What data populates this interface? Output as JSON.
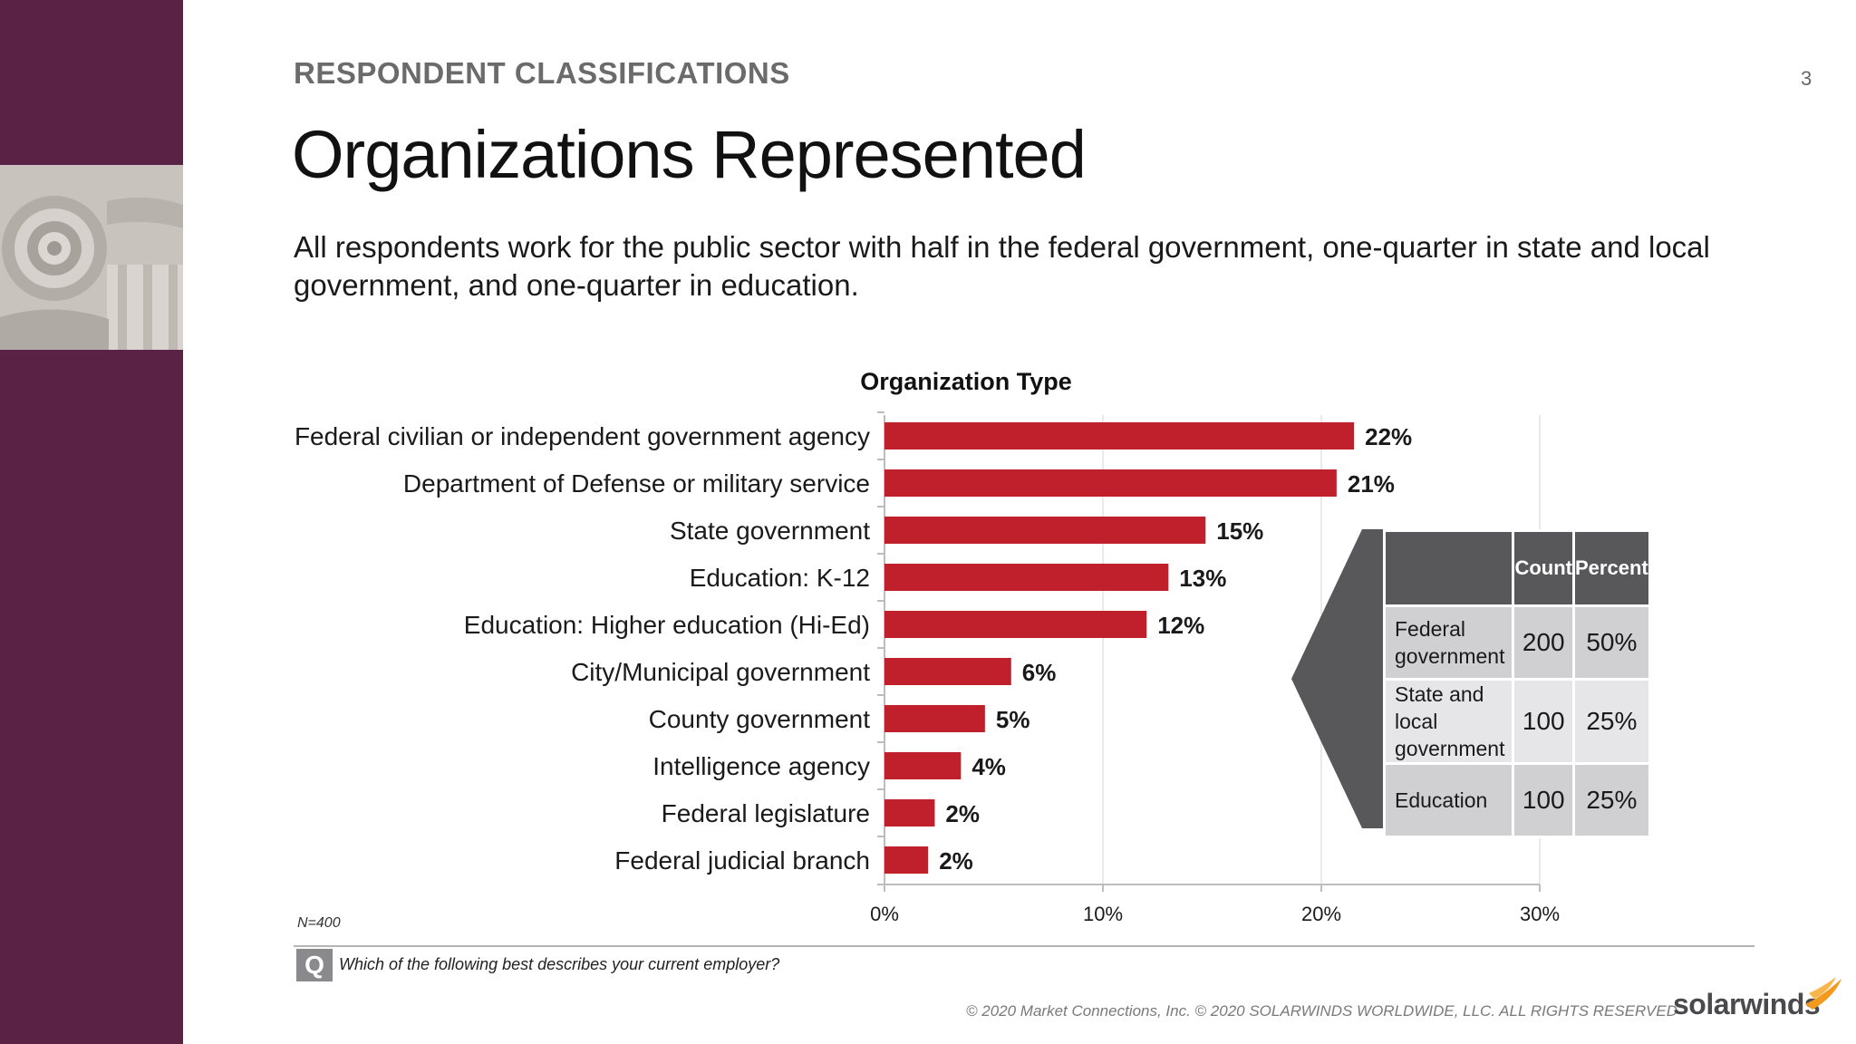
{
  "header": {
    "section_label": "RESPONDENT CLASSIFICATIONS",
    "page_number": "3",
    "title": "Organizations Represented",
    "subtitle": "All respondents work for the public sector with half in the federal government, one-quarter in state and local government, and one-quarter in education."
  },
  "chart_data": {
    "type": "bar",
    "orientation": "horizontal",
    "title": "Organization Type",
    "categories": [
      "Federal civilian or independent government agency",
      "Department of Defense or military service",
      "State government",
      "Education: K-12",
      "Education: Higher education (Hi-Ed)",
      "City/Municipal government",
      "County government",
      "Intelligence agency",
      "Federal legislature",
      "Federal judicial branch"
    ],
    "values": [
      21.5,
      20.7,
      14.7,
      13.0,
      12.0,
      5.8,
      4.6,
      3.5,
      2.3,
      2.0
    ],
    "value_labels": [
      "22%",
      "21%",
      "15%",
      "13%",
      "12%",
      "6%",
      "5%",
      "4%",
      "2%",
      "2%"
    ],
    "xlim": [
      0,
      30
    ],
    "x_ticks": [
      0,
      10,
      20,
      30
    ],
    "x_tick_labels": [
      "0%",
      "10%",
      "20%",
      "30%"
    ],
    "grid": true,
    "bar_color": "#c0202b"
  },
  "summary_table": {
    "headers": [
      "Count",
      "Percent"
    ],
    "rows": [
      {
        "label": "Federal government",
        "count": "200",
        "percent": "50%"
      },
      {
        "label": "State and local government",
        "count": "100",
        "percent": "25%"
      },
      {
        "label": "Education",
        "count": "100",
        "percent": "25%"
      }
    ]
  },
  "footer": {
    "n_note": "N=400",
    "q_icon": "Q",
    "question": "Which of the following best describes your current employer?",
    "copyright": "© 2020 Market Connections, Inc. © 2020 SOLARWINDS WORLDWIDE, LLC. ALL RIGHTS RESERVED",
    "brand": "solarwinds"
  },
  "colors": {
    "sidebar": "#5a2346",
    "bar": "#c0202b",
    "table_header": "#58585a",
    "brand_accent": "#f39a1e"
  }
}
